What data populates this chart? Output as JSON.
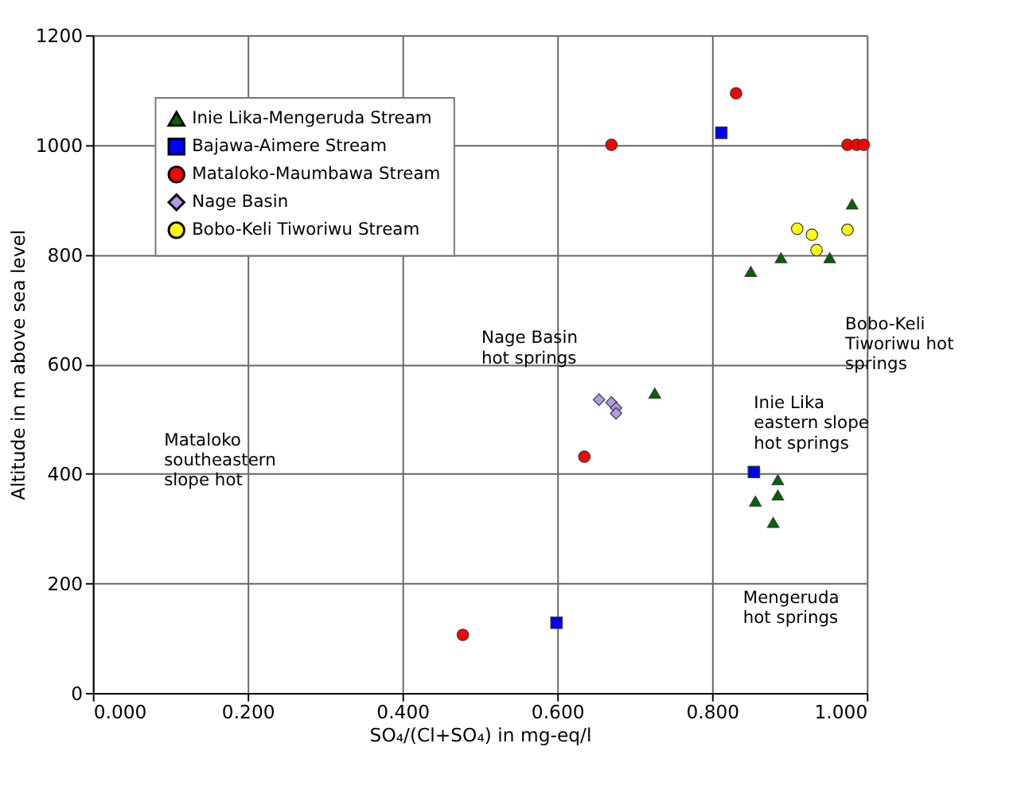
{
  "chart_data": {
    "type": "scatter",
    "xlabel": "SO₄/(Cl+SO₄) in mg-eq/l",
    "ylabel": "Altitude in m above sea level",
    "xlim": [
      0,
      1
    ],
    "ylim": [
      0,
      1200
    ],
    "xticks": [
      {
        "value": 0,
        "label": "0.000"
      },
      {
        "value": 0.2,
        "label": "0.200"
      },
      {
        "value": 0.4,
        "label": "0.400"
      },
      {
        "value": 0.6,
        "label": "0.600"
      },
      {
        "value": 0.8,
        "label": "0.800"
      },
      {
        "value": 1,
        "label": "1.000"
      }
    ],
    "yticks": [
      0,
      200,
      400,
      600,
      800,
      1000,
      1200
    ],
    "grid": true,
    "legend": "top left",
    "series": [
      {
        "name": "Inie Lika-Mengeruda Stream",
        "color": "#006600",
        "marker": "triangle",
        "x": [
          0.981,
          0.85,
          0.889,
          0.952,
          0.726,
          0.885,
          0.885,
          0.856,
          0.879
        ],
        "values": [
          892,
          769,
          794,
          794,
          547,
          389,
          361,
          350,
          311
        ]
      },
      {
        "name": "Bajawa-Aimere Stream",
        "color": "#0000ff",
        "marker": "square",
        "x": [
          0.812,
          0.854,
          0.599
        ],
        "values": [
          1022,
          403,
          128
        ]
      },
      {
        "name": "Mataloko-Maumbawa Stream",
        "color": "#ff0000",
        "marker": "circle",
        "x": [
          0.831,
          0.67,
          0.975,
          0.987,
          0.996,
          0.635,
          0.478
        ],
        "values": [
          1094,
          1000,
          1000,
          1000,
          1000,
          431,
          106
        ]
      },
      {
        "name": "Nage Basin",
        "color": "#b399e6",
        "marker": "diamond",
        "x": [
          0.654,
          0.67,
          0.676,
          0.676
        ],
        "values": [
          535,
          530,
          520,
          510
        ]
      },
      {
        "name": "Bobo-Keli Tiworiwu Stream",
        "color": "#ffff00",
        "marker": "circle",
        "x": [
          0.91,
          0.929,
          0.975,
          0.935
        ],
        "values": [
          847,
          836,
          845,
          808
        ]
      }
    ],
    "annotations": [
      "Nage Basin\nhot springs",
      "Mataloko\nsoutheastern\nslope hot",
      "Inie Lika\neastern slope\nhot springs",
      "Bobo-Keli\nTiworiwu hot\nsprings",
      "Mengeruda\nhot springs"
    ]
  }
}
